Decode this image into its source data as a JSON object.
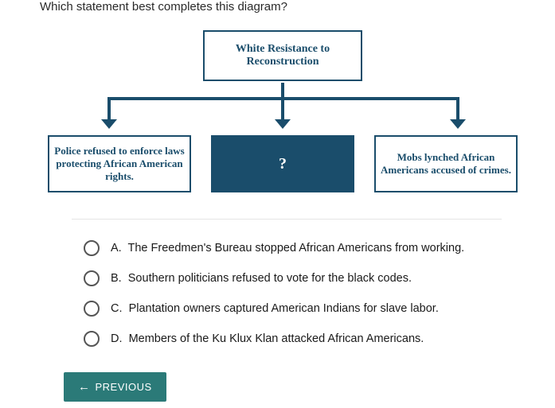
{
  "question": "Which statement best completes this diagram?",
  "diagram": {
    "type": "tree",
    "colors": {
      "border": "#1a4d6b",
      "fill": "#1a4d6b",
      "text": "#1a4d6b",
      "fill_text": "#ffffff",
      "background": "#ffffff"
    },
    "root": {
      "label": "White Resistance to Reconstruction"
    },
    "children": [
      {
        "label": "Police refused to enforce laws protecting African American rights.",
        "filled": false
      },
      {
        "label": "?",
        "filled": true
      },
      {
        "label": "Mobs lynched African Americans accused of crimes.",
        "filled": false
      }
    ]
  },
  "options": [
    {
      "letter": "A.",
      "text": "The Freedmen's Bureau stopped African Americans from working."
    },
    {
      "letter": "B.",
      "text": "Southern politicians refused to vote for the black codes."
    },
    {
      "letter": "C.",
      "text": "Plantation owners captured American Indians for slave labor."
    },
    {
      "letter": "D.",
      "text": "Members of the Ku Klux Klan attacked African Americans."
    }
  ],
  "nav": {
    "previous_label": "PREVIOUS"
  }
}
